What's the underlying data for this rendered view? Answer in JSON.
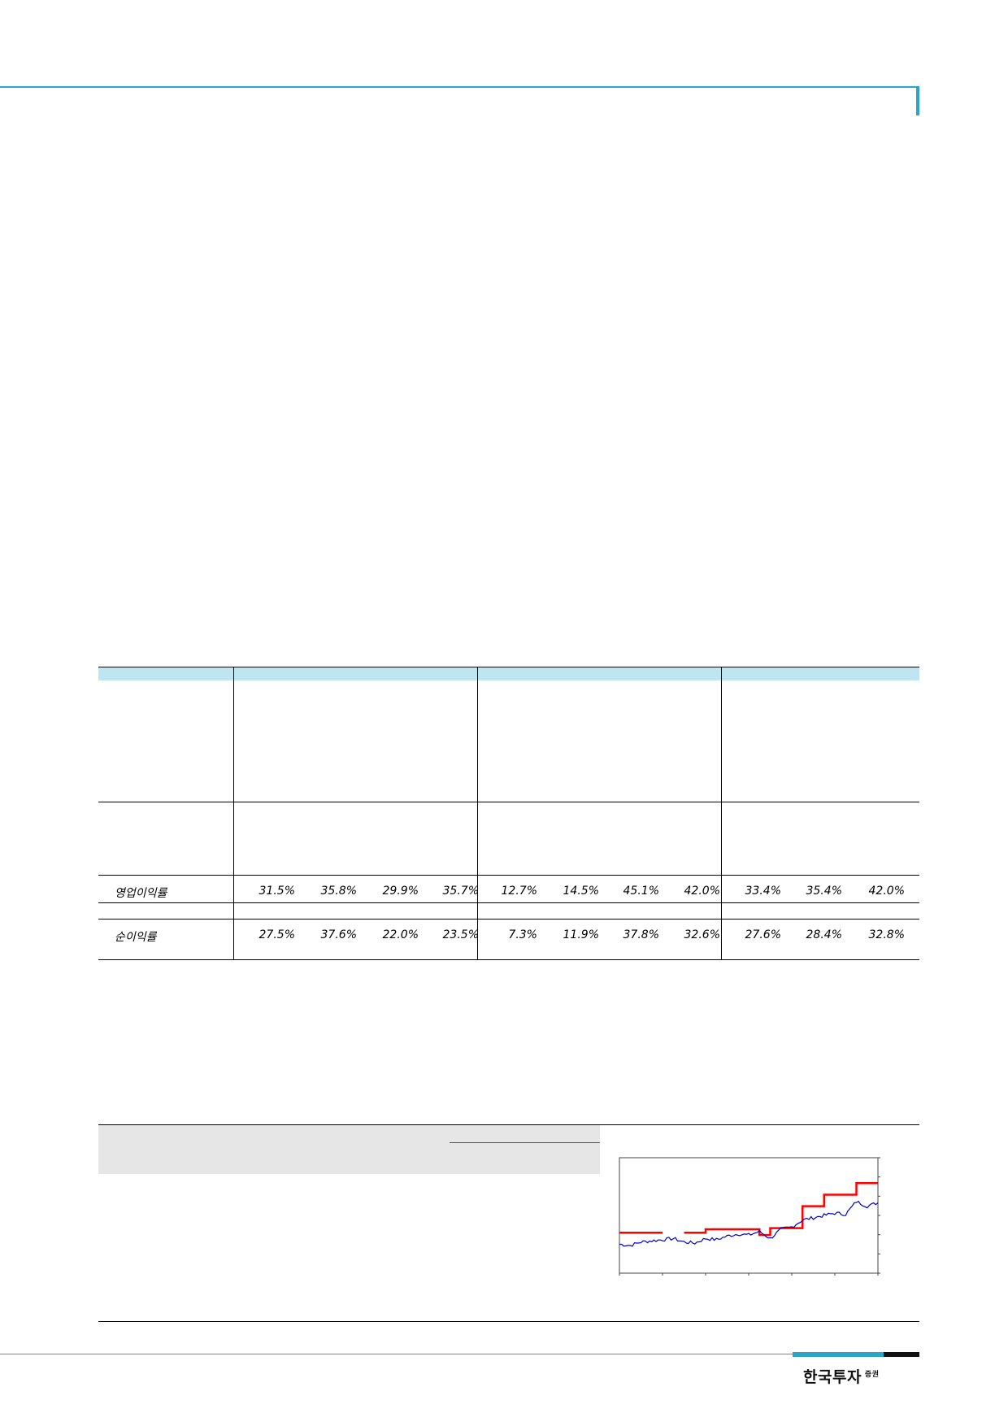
{
  "table": {
    "rows": [
      {
        "label": "영업이익률",
        "values": [
          "31.5%",
          "35.8%",
          "29.9%",
          "35.7%",
          "12.7%",
          "14.5%",
          "45.1%",
          "42.0%",
          "33.4%",
          "35.4%",
          "42.0%"
        ]
      },
      {
        "label": "순이익률",
        "values": [
          "27.5%",
          "37.6%",
          "22.0%",
          "23.5%",
          "7.3%",
          "11.9%",
          "37.8%",
          "32.6%",
          "27.6%",
          "28.4%",
          "32.8%"
        ]
      }
    ]
  },
  "chart_data": {
    "type": "line",
    "series": [
      {
        "color": "#ff0000",
        "style": "step",
        "values": [
          0.35,
          0.35,
          0.35,
          0.35,
          null,
          null,
          0.35,
          0.35,
          0.38,
          0.38,
          0.38,
          0.38,
          0.38,
          0.33,
          0.39,
          0.39,
          0.39,
          0.58,
          0.58,
          0.68,
          0.68,
          0.68,
          0.78,
          0.78,
          0.78
        ]
      },
      {
        "color": "#0000cc",
        "style": "line",
        "values": [
          0.25,
          0.24,
          0.27,
          0.28,
          0.29,
          0.3,
          0.27,
          0.26,
          0.3,
          0.29,
          0.32,
          0.34,
          0.33,
          0.36,
          0.3,
          0.38,
          0.4,
          0.46,
          0.48,
          0.5,
          0.52,
          0.51,
          0.62,
          0.58,
          0.61
        ]
      }
    ],
    "grid": false,
    "legend": "none"
  },
  "footer": {
    "brand": "한국투자",
    "brand_suffix": "증권"
  }
}
